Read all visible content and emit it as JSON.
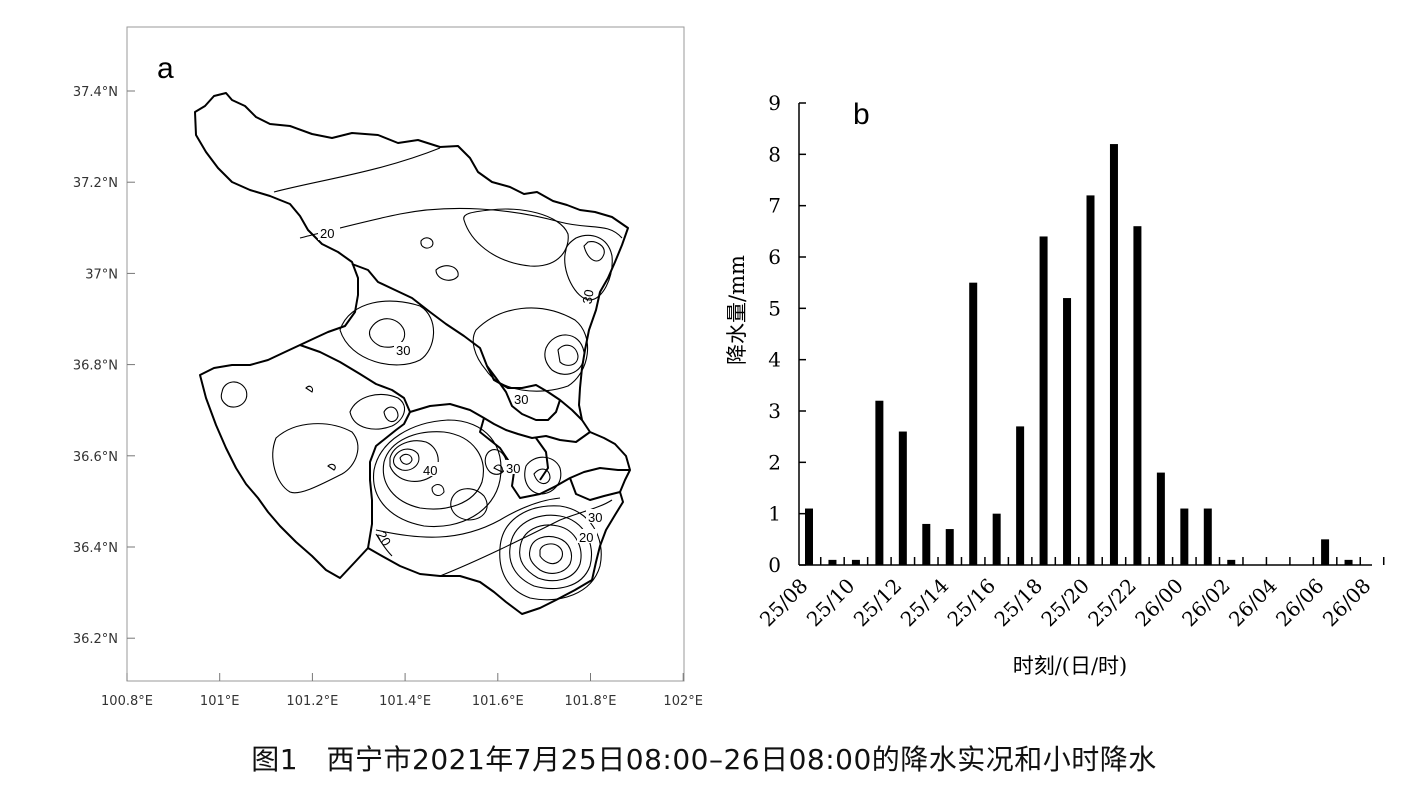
{
  "caption": "图1　西宁市2021年7月25日08:00–26日08:00的降水实况和小时降水",
  "panel_a": {
    "label": "a",
    "lat_ticks": [
      "37.4°N",
      "37.2°N",
      "37°N",
      "36.8°N",
      "36.6°N",
      "36.4°N",
      "36.2°N"
    ],
    "lon_ticks": [
      "100.8°E",
      "101°E",
      "101.2°E",
      "101.4°E",
      "101.6°E",
      "101.8°E",
      "102°E"
    ],
    "contour_labels": [
      "20",
      "30",
      "40",
      "30",
      "30",
      "20",
      "30",
      "30",
      "20"
    ]
  },
  "chart_data": [
    {
      "type": "map",
      "panel": "a",
      "lat_ticks": [
        "37.4°N",
        "37.2°N",
        "37°N",
        "36.8°N",
        "36.6°N",
        "36.4°N",
        "36.2°N"
      ],
      "lon_ticks": [
        "100.8°E",
        "101°E",
        "101.2°E",
        "101.4°E",
        "101.6°E",
        "101.8°E",
        "102°E"
      ],
      "contour_labels": [
        "20",
        "30",
        "40",
        "30",
        "30",
        "20",
        "30",
        "30",
        "20"
      ]
    },
    {
      "type": "bar",
      "panel": "b",
      "title": "b",
      "xlabel": "时刻/(日/时)",
      "ylabel": "降水量/mm",
      "ylim": [
        0,
        9
      ],
      "yticks": [
        "0",
        "1",
        "2",
        "3",
        "4",
        "5",
        "6",
        "7",
        "8",
        "9"
      ],
      "xtick_labels": [
        "25/08",
        "25/10",
        "25/12",
        "25/14",
        "25/16",
        "25/18",
        "25/20",
        "25/22",
        "26/00",
        "26/02",
        "26/04",
        "26/06",
        "26/08"
      ],
      "values": [
        1.1,
        0.1,
        0.1,
        3.2,
        2.6,
        0.8,
        0.7,
        5.5,
        1.0,
        2.7,
        6.4,
        5.2,
        7.2,
        8.2,
        6.6,
        1.8,
        1.1,
        1.1,
        0.1,
        0,
        0,
        0,
        0.5,
        0.1,
        0
      ],
      "grid": false
    }
  ]
}
